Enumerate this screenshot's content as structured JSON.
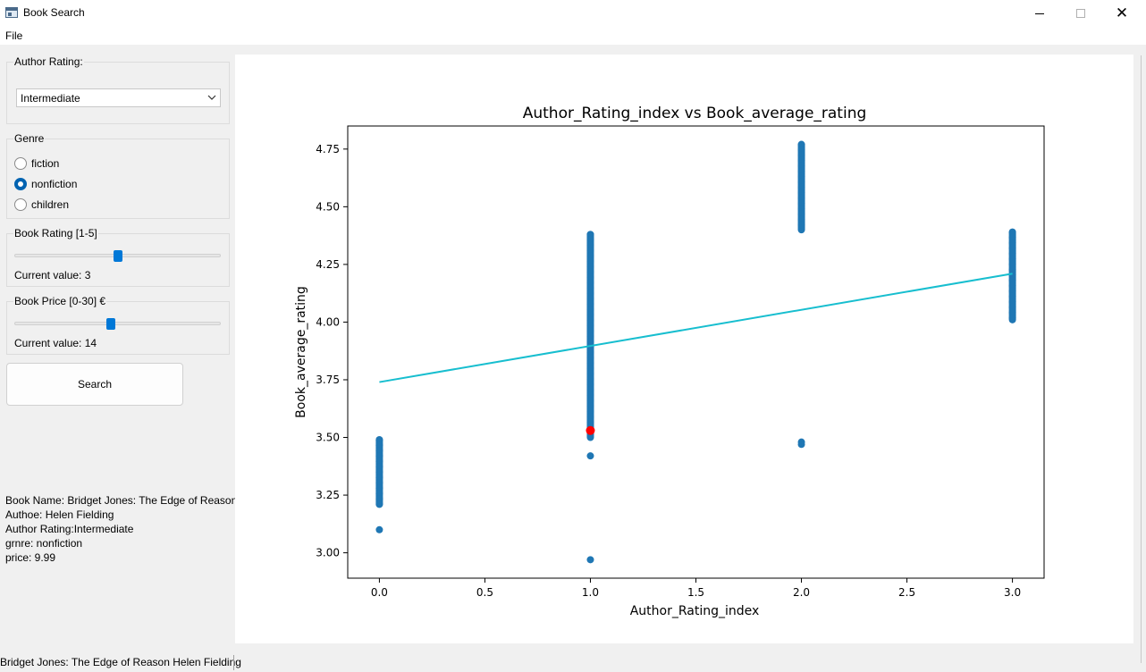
{
  "window": {
    "title": "Book Search"
  },
  "menu": {
    "file": "File"
  },
  "sidebar": {
    "author_rating": {
      "label": "Author Rating:",
      "selected": "Intermediate"
    },
    "genre": {
      "label": "Genre",
      "options": [
        "fiction",
        "nonfiction",
        "children"
      ],
      "selected": "nonfiction"
    },
    "book_rating": {
      "label": "Book Rating [1-5]",
      "value": 3,
      "min": 1,
      "max": 5,
      "value_text": "Current value: 3"
    },
    "book_price": {
      "label": "Book Price [0-30] €",
      "value": 14,
      "min": 0,
      "max": 30,
      "value_text": "Current value: 14"
    },
    "search_label": "Search",
    "details": [
      "Book Name: Bridget Jones: The Edge of Reason",
      "Authoe: Helen Fielding",
      "Author Rating:Intermediate",
      "grnre: nonfiction",
      "price: 9.99"
    ]
  },
  "status": {
    "text": "Bridget Jones: The Edge of Reason  Helen Fielding"
  },
  "colors": {
    "points": "#1f77b4",
    "trend": "#17becf",
    "highlight": "#ff0000",
    "accent": "#0078d7"
  },
  "chart_data": {
    "type": "scatter",
    "title": "Author_Rating_index vs Book_average_rating",
    "xlabel": "Author_Rating_index",
    "ylabel": "Book_average_rating",
    "xlim": [
      -0.15,
      3.15
    ],
    "ylim": [
      2.89,
      4.85
    ],
    "xticks": [
      0.0,
      0.5,
      1.0,
      1.5,
      2.0,
      2.5,
      3.0
    ],
    "xtick_labels": [
      "0.0",
      "0.5",
      "1.0",
      "1.5",
      "2.0",
      "2.5",
      "3.0"
    ],
    "yticks": [
      3.0,
      3.25,
      3.5,
      3.75,
      4.0,
      4.25,
      4.5,
      4.75
    ],
    "ytick_labels": [
      "3.00",
      "3.25",
      "3.50",
      "3.75",
      "4.00",
      "4.25",
      "4.50",
      "4.75"
    ],
    "groups": [
      {
        "x": 0,
        "y_min": 3.21,
        "y_max": 3.49,
        "outliers": [
          3.1
        ]
      },
      {
        "x": 1,
        "y_min": 3.5,
        "y_max": 4.38,
        "outliers": [
          3.42,
          2.97
        ]
      },
      {
        "x": 2,
        "y_min": 4.4,
        "y_max": 4.77,
        "outliers": [
          3.48,
          3.47
        ]
      },
      {
        "x": 3,
        "y_min": 4.01,
        "y_max": 4.39,
        "outliers": []
      }
    ],
    "trend_line": {
      "x": [
        0,
        3
      ],
      "y": [
        3.74,
        4.21
      ]
    },
    "highlight_point": {
      "x": 1.0,
      "y": 3.53
    }
  }
}
